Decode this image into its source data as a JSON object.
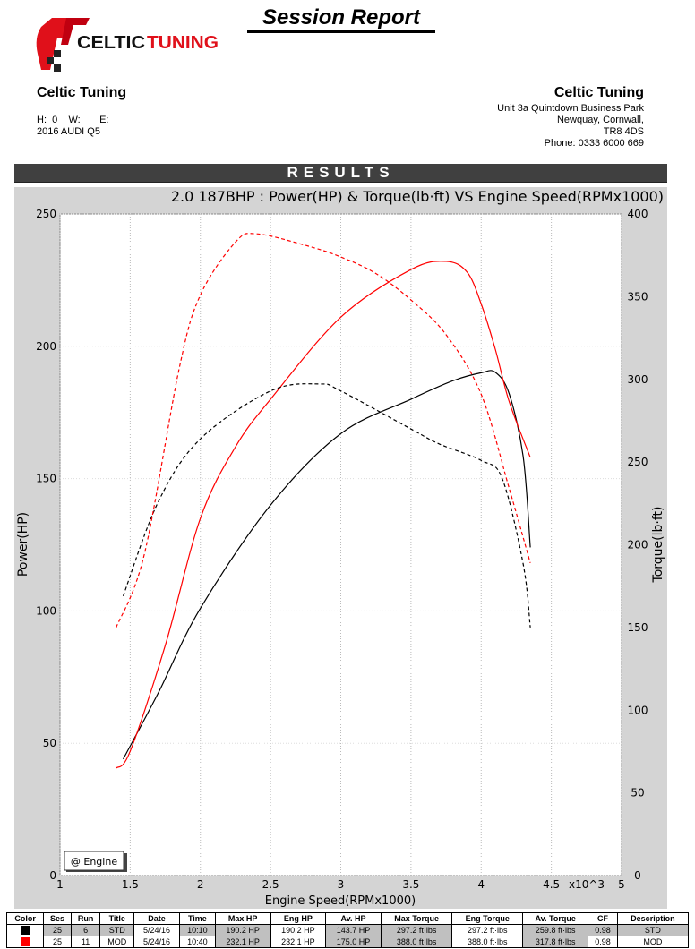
{
  "header": {
    "title": "Session Report",
    "logo_text": "CELTICTUNING"
  },
  "customer": {
    "name": "Celtic Tuning",
    "hwe": "H:  0    W:       E:",
    "vehicle": "2016 AUDI Q5"
  },
  "company": {
    "name": "Celtic Tuning",
    "address1": "Unit 3a Quintdown Business Park",
    "address2": "Newquay, Cornwall,",
    "postcode": "TR8 4DS",
    "phone": "Phone: 0333 6000 669"
  },
  "section_title": "RESULTS",
  "chart_data": {
    "type": "line",
    "title": "2.0 187BHP : Power(HP) & Torque(lb·ft) VS Engine Speed(RPMx1000)",
    "xlabel": "Engine Speed(RPMx1000)",
    "ylabel": "Power(HP)",
    "y2label": "Torque(lb·ft)",
    "x_multiplier_label": "x10^3",
    "legend": "@ Engine",
    "legend_position": "bottom-left",
    "xlim": [
      1,
      5
    ],
    "ylim": [
      0,
      250
    ],
    "y2lim": [
      0,
      400
    ],
    "grid": true,
    "xticks": [
      "1",
      "1.5",
      "2",
      "2.5",
      "3",
      "3.5",
      "4",
      "4.5",
      "5"
    ],
    "yticks": [
      "0",
      "50",
      "100",
      "150",
      "200",
      "250"
    ],
    "y2ticks": [
      "0",
      "50",
      "100",
      "150",
      "200",
      "250",
      "300",
      "350",
      "400"
    ],
    "series": [
      {
        "name": "STD Power",
        "color": "#000000",
        "style": "solid",
        "axis": "left",
        "x": [
          1.45,
          1.7,
          2.0,
          2.5,
          3.0,
          3.5,
          3.8,
          4.0,
          4.1,
          4.2,
          4.3,
          4.35
        ],
        "y": [
          44,
          69,
          101,
          140,
          167,
          180,
          187,
          190,
          190.2,
          182,
          158,
          124
        ]
      },
      {
        "name": "MOD Power",
        "color": "#ff0000",
        "style": "solid",
        "axis": "left",
        "x": [
          1.4,
          1.5,
          1.75,
          2.0,
          2.25,
          2.5,
          3.0,
          3.5,
          3.75,
          3.9,
          4.0,
          4.1,
          4.2,
          4.35
        ],
        "y": [
          40.6,
          47,
          87,
          135,
          162,
          180,
          211,
          229,
          232.1,
          228,
          216,
          199,
          179,
          158
        ]
      },
      {
        "name": "STD Torque",
        "color": "#000000",
        "style": "dashed",
        "axis": "right",
        "x": [
          1.45,
          1.7,
          2.0,
          2.5,
          2.85,
          3.0,
          3.5,
          3.7,
          4.0,
          4.15,
          4.3,
          4.35
        ],
        "y": [
          169,
          226,
          264,
          293,
          297.2,
          293,
          270,
          261,
          251,
          240,
          188,
          150
        ]
      },
      {
        "name": "MOD Torque",
        "color": "#ff0000",
        "style": "dashed",
        "axis": "right",
        "x": [
          1.4,
          1.6,
          1.85,
          2.0,
          2.25,
          2.4,
          2.75,
          3.0,
          3.25,
          3.5,
          3.75,
          4.0,
          4.2,
          4.35
        ],
        "y": [
          150,
          194,
          307,
          351,
          383,
          388,
          381,
          374,
          364,
          348,
          327,
          291,
          234,
          189
        ]
      }
    ]
  },
  "table": {
    "headers": [
      "Color",
      "Ses",
      "Run",
      "Title",
      "Date",
      "Time",
      "Max HP",
      "Eng HP",
      "Av. HP",
      "Max Torque",
      "Eng Torque",
      "Av. Torque",
      "CF",
      "Description"
    ],
    "rows": [
      {
        "color": "#000000",
        "ses": "25",
        "run": "6",
        "title": "STD",
        "date": "5/24/16",
        "time": "10:10",
        "max_hp": "190.2 HP",
        "eng_hp": "190.2 HP",
        "av_hp": "143.7 HP",
        "max_torque": "297.2 ft·lbs",
        "eng_torque": "297.2 ft·lbs",
        "av_torque": "259.8 ft·lbs",
        "cf": "0.98",
        "description": "STD"
      },
      {
        "color": "#ff0000",
        "ses": "25",
        "run": "11",
        "title": "MOD",
        "date": "5/24/16",
        "time": "10:40",
        "max_hp": "232.1 HP",
        "eng_hp": "232.1 HP",
        "av_hp": "175.0 HP",
        "max_torque": "388.0 ft·lbs",
        "eng_torque": "388.0 ft·lbs",
        "av_torque": "317.8 ft·lbs",
        "cf": "0.98",
        "description": "MOD"
      }
    ]
  }
}
